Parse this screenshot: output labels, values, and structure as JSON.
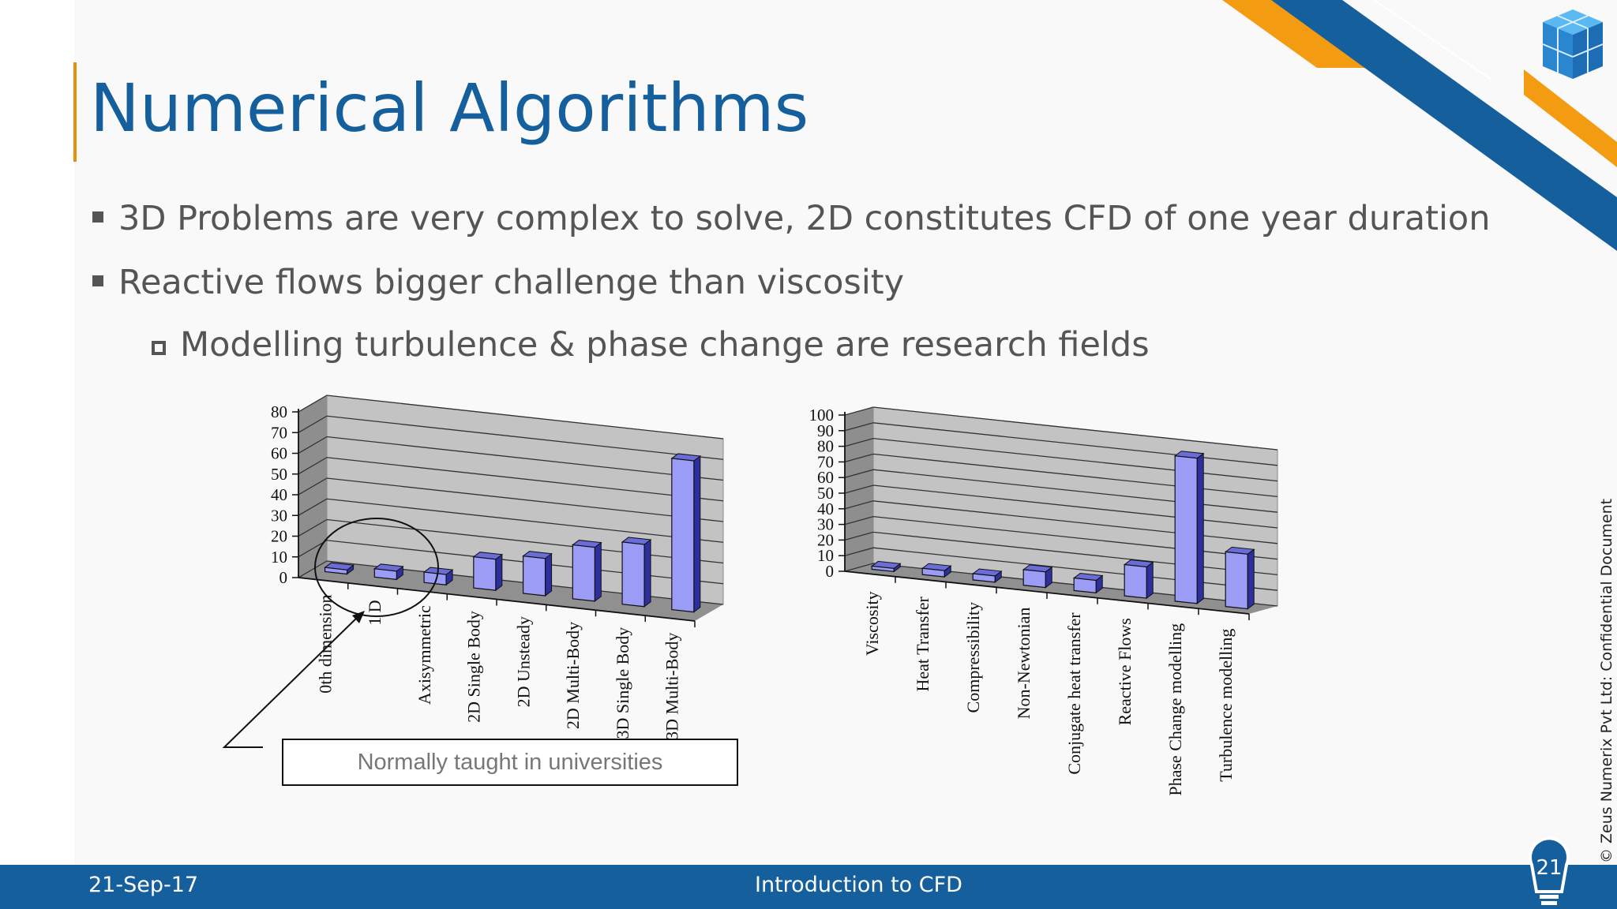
{
  "slide": {
    "title": "Numerical Algorithms",
    "bullets": [
      "3D Problems are very complex to solve, 2D constitutes CFD of one year duration",
      "Reactive flows bigger challenge than viscosity"
    ],
    "sub_bullets": [
      "Modelling turbulence & phase change are research fields"
    ],
    "callout": "Normally taught in universities",
    "footer_date": "21-Sep-17",
    "footer_title": "Introduction to CFD",
    "page_number": "21",
    "copyright": "© Zeus Numerix Pvt Ltd: Confidential Document",
    "colors": {
      "title_blue": "#15609c",
      "accent_orange": "#f39c12",
      "footer_blue": "#15609c",
      "bar_fill": "#9a9cf6"
    }
  },
  "chart_data": [
    {
      "type": "bar",
      "categories": [
        "0th dimension",
        "1 D",
        "Axisymmetric",
        "2D Single Body",
        "2D Unsteady",
        "2D Multi-Body",
        "3D Single Body",
        "3D Multi-Body"
      ],
      "values": [
        2,
        4,
        5,
        15,
        18,
        26,
        30,
        73
      ],
      "ylim": [
        0,
        80
      ],
      "yticks": [
        "0",
        "10",
        "20",
        "30",
        "40",
        "50",
        "60",
        "70",
        "80"
      ],
      "grid": true
    },
    {
      "type": "bar",
      "categories": [
        "Viscosity",
        "Heat Transfer",
        "Compressibility",
        "Non-Newtonian",
        "Conjugate heat transfer",
        "Reactive Flows",
        "Phase Change modelling",
        "Turbulence modelling"
      ],
      "values": [
        2,
        4,
        4,
        10,
        8,
        20,
        93,
        35
      ],
      "ylim": [
        0,
        100
      ],
      "yticks": [
        "0",
        "10",
        "20",
        "30",
        "40",
        "50",
        "60",
        "70",
        "80",
        "90",
        "100"
      ],
      "grid": true
    }
  ]
}
